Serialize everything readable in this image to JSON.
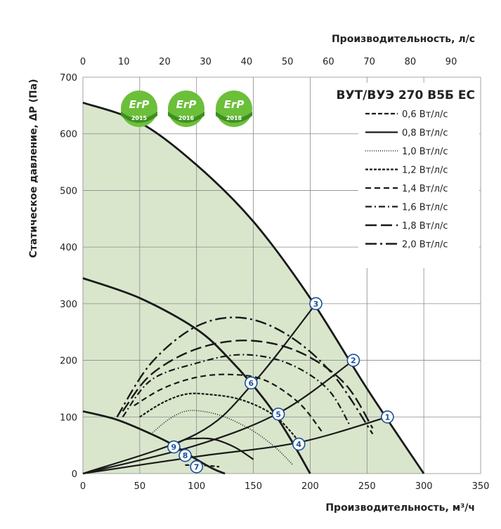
{
  "chart_data": {
    "type": "line",
    "title": "ВУТ/ВУЭ 270 В5Б ЕС",
    "xlabel": "Производительность, м³/ч",
    "x2label": "Производительность, л/с",
    "ylabel": "Статическое давление, ΔP (Па)",
    "xlim": [
      0,
      350
    ],
    "ylim": [
      0,
      700
    ],
    "x2lim": [
      0,
      97.2
    ],
    "xticks": [
      "0",
      "50",
      "100",
      "150",
      "200",
      "250",
      "300",
      "350"
    ],
    "yticks": [
      "0",
      "100",
      "200",
      "300",
      "400",
      "500",
      "600",
      "700"
    ],
    "x2ticks": [
      "0",
      "10",
      "20",
      "30",
      "40",
      "50",
      "60",
      "70",
      "80",
      "90"
    ],
    "grid": true,
    "legend_position": "top-right",
    "erp_badges": [
      {
        "label": "ErP",
        "year": "2015"
      },
      {
        "label": "ErP",
        "year": "2016"
      },
      {
        "label": "ErP",
        "year": "2018"
      }
    ],
    "operating_area_color": "#d9e6cc",
    "fan_curves": [
      {
        "x": [
          0,
          50,
          100,
          150,
          200,
          250,
          300
        ],
        "y": [
          655,
          620,
          545,
          445,
          310,
          150,
          0
        ]
      },
      {
        "x": [
          0,
          50,
          100,
          130,
          160,
          180,
          200
        ],
        "y": [
          345,
          310,
          255,
          200,
          130,
          70,
          0
        ]
      },
      {
        "x": [
          0,
          30,
          60,
          80,
          100,
          115,
          125
        ],
        "y": [
          110,
          95,
          70,
          50,
          25,
          8,
          0
        ]
      }
    ],
    "system_curves": [
      {
        "x": [
          0,
          100,
          150,
          205
        ],
        "y": [
          0,
          70,
          160,
          300
        ]
      },
      {
        "x": [
          0,
          100,
          175,
          238
        ],
        "y": [
          0,
          50,
          110,
          200
        ]
      },
      {
        "x": [
          0,
          100,
          190,
          268
        ],
        "y": [
          0,
          30,
          55,
          100
        ]
      }
    ],
    "efficiency_series": [
      {
        "name": "0,6 Вт/л/с",
        "dash": "6,3",
        "width": 2.2,
        "x": [
          90,
          100,
          110,
          120
        ],
        "y": [
          15,
          15,
          14,
          12
        ]
      },
      {
        "name": "0,8 Вт/л/с",
        "dash": "",
        "width": 2.2,
        "x": [
          80,
          90,
          100,
          110,
          120,
          135,
          150
        ],
        "y": [
          50,
          60,
          62,
          62,
          58,
          45,
          25
        ]
      },
      {
        "name": "1,0 Вт/л/с",
        "dash": "1,2",
        "width": 1.6,
        "x": [
          60,
          75,
          90,
          105,
          125,
          150,
          170,
          185
        ],
        "y": [
          70,
          95,
          110,
          110,
          100,
          75,
          45,
          15
        ]
      },
      {
        "name": "1,2 Вт/л/с",
        "dash": "4,2",
        "width": 2.2,
        "x": [
          50,
          70,
          90,
          110,
          140,
          170,
          195
        ],
        "y": [
          100,
          125,
          140,
          140,
          130,
          100,
          45
        ]
      },
      {
        "name": "1,4 Вт/л/с",
        "dash": "8,5",
        "width": 2.2,
        "x": [
          45,
          70,
          100,
          130,
          160,
          190,
          210
        ],
        "y": [
          120,
          150,
          170,
          175,
          165,
          125,
          75
        ]
      },
      {
        "name": "1,6 Вт/л/с",
        "dash": "9,4,2,4",
        "width": 2.2,
        "x": [
          35,
          60,
          100,
          140,
          180,
          215,
          235
        ],
        "y": [
          100,
          165,
          195,
          210,
          195,
          150,
          85
        ]
      },
      {
        "name": "1,8 Вт/л/с",
        "dash": "16,6",
        "width": 2.4,
        "x": [
          35,
          60,
          100,
          145,
          190,
          230,
          255
        ],
        "y": [
          110,
          175,
          220,
          235,
          215,
          160,
          80
        ]
      },
      {
        "name": "2,0 Вт/л/с",
        "dash": "16,5,3,5",
        "width": 2.4,
        "x": [
          30,
          60,
          100,
          140,
          180,
          220,
          255
        ],
        "y": [
          100,
          195,
          260,
          275,
          245,
          175,
          70
        ]
      }
    ],
    "markers": [
      {
        "label": "1",
        "x": 268,
        "y": 100
      },
      {
        "label": "2",
        "x": 238,
        "y": 200
      },
      {
        "label": "3",
        "x": 205,
        "y": 300
      },
      {
        "label": "4",
        "x": 190,
        "y": 52
      },
      {
        "label": "5",
        "x": 172,
        "y": 105
      },
      {
        "label": "6",
        "x": 148,
        "y": 160
      },
      {
        "label": "7",
        "x": 100,
        "y": 12
      },
      {
        "label": "8",
        "x": 90,
        "y": 32
      },
      {
        "label": "9",
        "x": 80,
        "y": 47
      }
    ]
  }
}
